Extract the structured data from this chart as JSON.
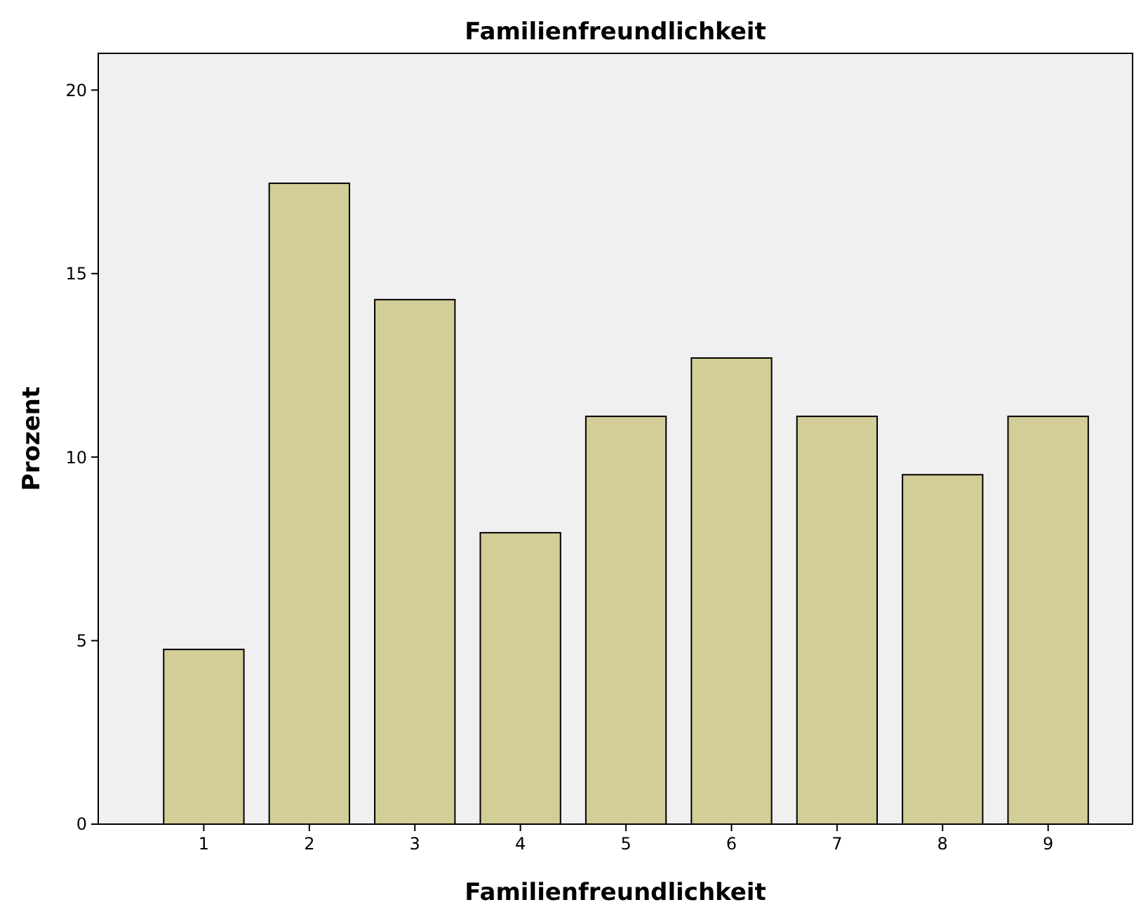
{
  "chart_data": {
    "type": "bar",
    "title": "Familienfreundlichkeit",
    "xlabel": "Familienfreundlichkeit",
    "ylabel": "Prozent",
    "categories": [
      "1",
      "2",
      "3",
      "4",
      "5",
      "6",
      "7",
      "8",
      "9"
    ],
    "values": [
      4.76,
      17.46,
      14.29,
      7.94,
      11.11,
      12.7,
      11.11,
      9.52,
      11.11
    ],
    "color": "#d3ce97",
    "ylim": [
      0,
      21
    ],
    "yticks": [
      0,
      5,
      10,
      15,
      20
    ],
    "grid": false
  }
}
